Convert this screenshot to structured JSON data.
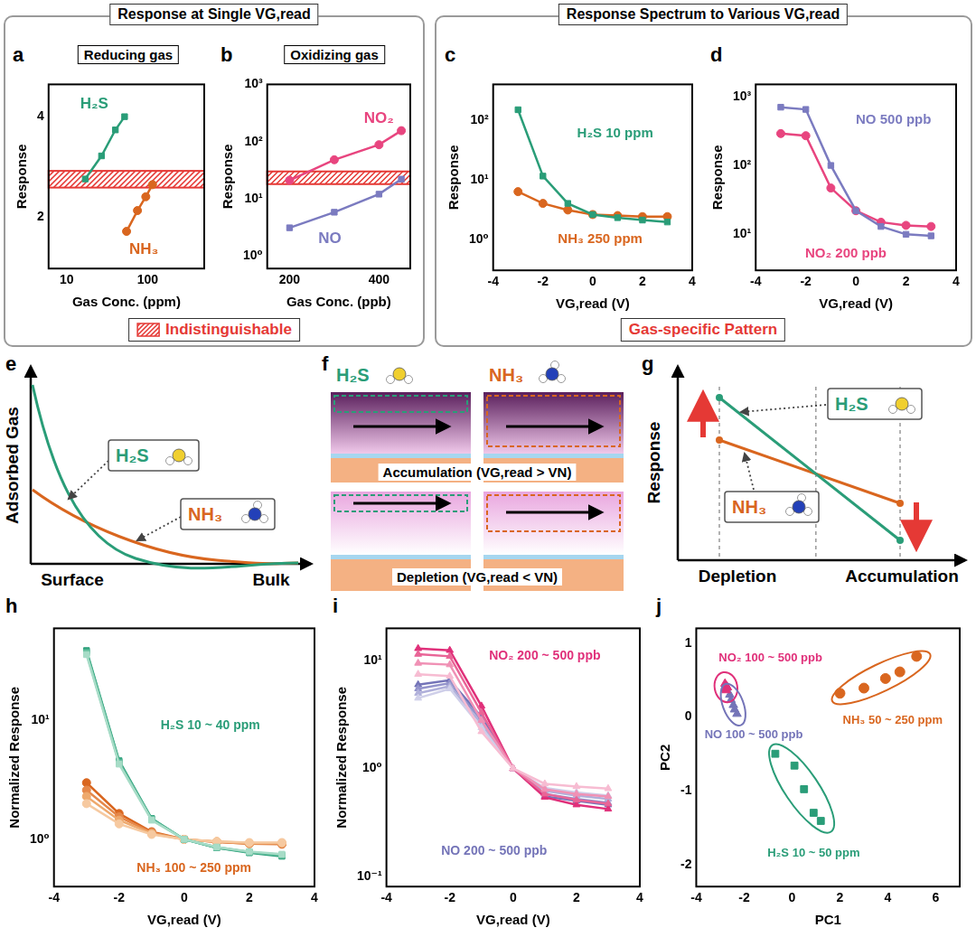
{
  "groups": [
    {
      "title": "Response at Single VG,read",
      "caption": "Indistinguishable",
      "color": "#e53935",
      "marker": "hatch"
    },
    {
      "title": "Response Spectrum to Various VG,read",
      "caption": "Gas-specific Pattern",
      "color": "#e53935"
    }
  ],
  "chart_data": [
    {
      "panel": "a",
      "subtitle": "Reducing gas",
      "type": "line",
      "x_label": "Gas Conc. (ppm)",
      "y_label": "Response",
      "log": true,
      "grid": false,
      "xlim": [
        6,
        500
      ],
      "xticks": [
        10,
        100
      ],
      "ylim": [
        1.4,
        5
      ],
      "yticks": [
        2,
        4
      ],
      "band": {
        "values": [
          2.45,
          2.75
        ],
        "color": "#e53935"
      },
      "series": [
        {
          "color": "#2a9d78",
          "marker": "square",
          "x": [
            17,
            27,
            40,
            52
          ],
          "values": [
            2.6,
            3.05,
            3.65,
            4.0
          ]
        },
        {
          "color": "#d9661f",
          "marker": "circle",
          "x": [
            55,
            75,
            95,
            115
          ],
          "values": [
            1.81,
            2.09,
            2.3,
            2.5
          ]
        }
      ],
      "annotations": [
        {
          "text": "H₂S",
          "x": 22,
          "y": 4.35,
          "color": "#2a9d78"
        },
        {
          "text": "NH₃",
          "x": 90,
          "y": 1.6,
          "color": "#d9661f"
        }
      ]
    },
    {
      "panel": "b",
      "subtitle": "Oxidizing gas",
      "type": "line",
      "x_label": "Gas Conc. (ppb)",
      "y_label": "Response",
      "log": "y",
      "grid": false,
      "xlim": [
        150,
        470
      ],
      "xticks": [
        200,
        400
      ],
      "ylim": [
        0.6,
        1000
      ],
      "yticks": [
        {
          "value": 1,
          "label": "10⁰"
        },
        {
          "value": 10,
          "label": "10¹"
        },
        {
          "value": 100,
          "label": "10²"
        },
        {
          "value": 1000,
          "label": "10³"
        }
      ],
      "band": {
        "values": [
          18,
          30
        ],
        "color": "#e53935"
      },
      "series": [
        {
          "color": "#e8457f",
          "marker": "circle",
          "x": [
            200,
            300,
            400,
            450
          ],
          "values": [
            21,
            48,
            88,
            155
          ]
        },
        {
          "color": "#7b7bc0",
          "marker": "square",
          "x": [
            200,
            300,
            400,
            450
          ],
          "values": [
            3.1,
            5.8,
            12,
            22
          ]
        }
      ],
      "annotations": [
        {
          "text": "NO₂",
          "x": 400,
          "y": 250,
          "color": "#e8457f"
        },
        {
          "text": "NO",
          "x": 290,
          "y": 2.0,
          "color": "#7b7bc0"
        }
      ]
    },
    {
      "panel": "c",
      "type": "line",
      "x_label": "VG,read (V)",
      "y_label": "Response",
      "log": "y",
      "grid": false,
      "xlim": [
        -4,
        4
      ],
      "xticks": [
        -4,
        -2,
        0,
        2,
        4
      ],
      "ylim": [
        0.3,
        400
      ],
      "yticks": [
        {
          "value": 1,
          "label": "10⁰"
        },
        {
          "value": 10,
          "label": "10¹"
        },
        {
          "value": 100,
          "label": "10²"
        }
      ],
      "series": [
        {
          "color": "#2a9d78",
          "marker": "square",
          "x": [
            -3,
            -2,
            -1,
            0,
            1,
            2,
            3
          ],
          "values": [
            150,
            11.5,
            4,
            2.6,
            2.3,
            2.1,
            1.95
          ]
        },
        {
          "color": "#d9661f",
          "marker": "circle",
          "x": [
            -3,
            -2,
            -1,
            0,
            1,
            2,
            3
          ],
          "values": [
            6.3,
            4,
            3.1,
            2.6,
            2.5,
            2.4,
            2.4
          ]
        }
      ],
      "annotations": [
        {
          "text": "H₂S 10 ppm",
          "x": 0.9,
          "y": 60,
          "color": "#2a9d78"
        },
        {
          "text": "NH₃ 250 ppm",
          "x": 0.3,
          "y": 1.0,
          "color": "#d9661f"
        }
      ]
    },
    {
      "panel": "d",
      "type": "line",
      "x_label": "VG,read (V)",
      "y_label": "Response",
      "log": "y",
      "grid": false,
      "xlim": [
        -4,
        4
      ],
      "xticks": [
        -4,
        -2,
        0,
        2,
        4
      ],
      "ylim": [
        3,
        1500
      ],
      "yticks": [
        {
          "value": 10,
          "label": "10¹"
        },
        {
          "value": 100,
          "label": "10²"
        },
        {
          "value": 1000,
          "label": "10³"
        }
      ],
      "series": [
        {
          "color": "#7b7bc0",
          "marker": "square",
          "x": [
            -3,
            -2,
            -1,
            0,
            1,
            2,
            3
          ],
          "values": [
            700,
            650,
            100,
            22,
            13,
            10,
            9.5
          ]
        },
        {
          "color": "#e8457f",
          "marker": "circle",
          "x": [
            -3,
            -2,
            -1,
            0,
            1,
            2,
            3
          ],
          "values": [
            290,
            270,
            47,
            22,
            15,
            13.5,
            13
          ]
        }
      ],
      "annotations": [
        {
          "text": "NO 500 ppb",
          "x": 1.5,
          "y": 450,
          "color": "#7b7bc0"
        },
        {
          "text": "NO₂ 200 ppb",
          "x": -0.4,
          "y": 5.2,
          "color": "#e8457f"
        }
      ]
    },
    {
      "panel": "h",
      "type": "line",
      "x_label": "VG,read (V)",
      "y_label": "Normalized Response",
      "log": "y",
      "grid": false,
      "xlim": [
        -4,
        4
      ],
      "xticks": [
        -4,
        -2,
        0,
        2,
        4
      ],
      "ylim": [
        0.4,
        60
      ],
      "yticks": [
        {
          "value": 1,
          "label": "10⁰"
        },
        {
          "value": 10,
          "label": "10¹"
        }
      ],
      "series": [
        {
          "color": "#a7dcc7",
          "marker": "square",
          "x": [
            -3,
            -2,
            -1,
            0,
            1,
            2,
            3
          ],
          "values": [
            36,
            4.3,
            1.45,
            1,
            0.86,
            0.79,
            0.75
          ]
        },
        {
          "color": "#6ec4a3",
          "marker": "square",
          "x": [
            -3,
            -2,
            -1,
            0,
            1,
            2,
            3
          ],
          "values": [
            37,
            4.4,
            1.47,
            1,
            0.86,
            0.78,
            0.74
          ]
        },
        {
          "color": "#45b08d",
          "marker": "square",
          "x": [
            -3,
            -2,
            -1,
            0,
            1,
            2,
            3
          ],
          "values": [
            38,
            4.5,
            1.48,
            1,
            0.85,
            0.78,
            0.73
          ]
        },
        {
          "color": "#2a9d78",
          "marker": "square",
          "x": [
            -3,
            -2,
            -1,
            0,
            1,
            2,
            3
          ],
          "values": [
            39,
            4.6,
            1.5,
            1,
            0.85,
            0.77,
            0.72
          ]
        },
        {
          "color": "#f6c9a0",
          "marker": "circle",
          "x": [
            -3,
            -2,
            -1,
            0,
            1,
            2,
            3
          ],
          "values": [
            2.0,
            1.35,
            1.1,
            1,
            0.96,
            0.94,
            0.94
          ]
        },
        {
          "color": "#eea96d",
          "marker": "circle",
          "x": [
            -3,
            -2,
            -1,
            0,
            1,
            2,
            3
          ],
          "values": [
            2.3,
            1.45,
            1.12,
            1,
            0.96,
            0.93,
            0.93
          ]
        },
        {
          "color": "#e5884a",
          "marker": "circle",
          "x": [
            -3,
            -2,
            -1,
            0,
            1,
            2,
            3
          ],
          "values": [
            2.6,
            1.55,
            1.14,
            1,
            0.95,
            0.92,
            0.92
          ]
        },
        {
          "color": "#d9661f",
          "marker": "circle",
          "x": [
            -3,
            -2,
            -1,
            0,
            1,
            2,
            3
          ],
          "values": [
            3.0,
            1.65,
            1.16,
            1,
            0.95,
            0.92,
            0.91
          ]
        }
      ],
      "annotations": [
        {
          "text": "H₂S 10 ~ 40 ppm",
          "x": 0.8,
          "y": 9,
          "color": "#2a9d78"
        },
        {
          "text": "NH₃ 100 ~ 250 ppm",
          "x": 0.3,
          "y": 0.57,
          "color": "#d9661f"
        }
      ]
    },
    {
      "panel": "i",
      "type": "line",
      "x_label": "VG,read (V)",
      "y_label": "Normalized Response",
      "log": "y",
      "grid": false,
      "xlim": [
        -4,
        4
      ],
      "xticks": [
        -4,
        -2,
        0,
        2,
        4
      ],
      "ylim": [
        0.08,
        20
      ],
      "yticks": [
        {
          "value": 0.1,
          "label": "10⁻¹"
        },
        {
          "value": 1,
          "label": "10⁰"
        },
        {
          "value": 10,
          "label": "10¹"
        }
      ],
      "series": [
        {
          "color": "#f7bcd2",
          "marker": "triangle",
          "x": [
            -3,
            -2,
            -1,
            0,
            1,
            2,
            3
          ],
          "values": [
            7.5,
            7.2,
            2.2,
            1,
            0.72,
            0.68,
            0.65
          ]
        },
        {
          "color": "#f091b5",
          "marker": "triangle",
          "x": [
            -3,
            -2,
            -1,
            0,
            1,
            2,
            3
          ],
          "values": [
            9.5,
            9.2,
            2.8,
            1,
            0.64,
            0.58,
            0.55
          ]
        },
        {
          "color": "#e96597",
          "marker": "triangle",
          "x": [
            -3,
            -2,
            -1,
            0,
            1,
            2,
            3
          ],
          "values": [
            11.5,
            11,
            3.3,
            1,
            0.58,
            0.51,
            0.47
          ]
        },
        {
          "color": "#e0307a",
          "marker": "triangle",
          "x": [
            -3,
            -2,
            -1,
            0,
            1,
            2,
            3
          ],
          "values": [
            13,
            12.5,
            3.8,
            1,
            0.54,
            0.46,
            0.42
          ]
        },
        {
          "color": "#cfcfe9",
          "marker": "triangle",
          "x": [
            -3,
            -2,
            -1,
            0,
            1,
            2,
            3
          ],
          "values": [
            4.5,
            5.5,
            2.4,
            1,
            0.66,
            0.6,
            0.56
          ]
        },
        {
          "color": "#b0b0da",
          "marker": "triangle",
          "x": [
            -3,
            -2,
            -1,
            0,
            1,
            2,
            3
          ],
          "values": [
            5,
            5.8,
            2.6,
            1,
            0.62,
            0.56,
            0.52
          ]
        },
        {
          "color": "#9393cb",
          "marker": "triangle",
          "x": [
            -3,
            -2,
            -1,
            0,
            1,
            2,
            3
          ],
          "values": [
            5.5,
            6.2,
            2.8,
            1,
            0.58,
            0.52,
            0.48
          ]
        },
        {
          "color": "#7474b8",
          "marker": "triangle",
          "x": [
            -3,
            -2,
            -1,
            0,
            1,
            2,
            3
          ],
          "values": [
            6,
            6.6,
            3.0,
            1,
            0.55,
            0.5,
            0.46
          ]
        }
      ],
      "annotations": [
        {
          "text": "NO₂ 200 ~ 500 ppb",
          "x": 1.0,
          "y": 11,
          "color": "#e0307a"
        },
        {
          "text": "NO 200 ~ 500 ppb",
          "x": -0.6,
          "y": 0.17,
          "color": "#7474b8"
        }
      ]
    },
    {
      "panel": "j",
      "type": "scatter",
      "x_label": "PC1",
      "y_label": "PC2",
      "grid": false,
      "xlim": [
        -4,
        7
      ],
      "xticks": [
        -4,
        -2,
        0,
        2,
        4,
        6
      ],
      "ylim": [
        -2.3,
        1.2
      ],
      "yticks": [
        -2,
        -1,
        0,
        1
      ],
      "series": [
        {
          "color": "#e0307a",
          "marker": "triangle",
          "x": [
            -2.8,
            -2.75,
            -2.7,
            -2.8,
            -2.75
          ],
          "values": [
            0.45,
            0.42,
            0.4,
            0.38,
            0.36
          ]
        },
        {
          "color": "#7474b8",
          "marker": "triangle",
          "x": [
            -2.6,
            -2.55,
            -2.45,
            -2.4,
            -2.3
          ],
          "values": [
            0.3,
            0.23,
            0.16,
            0.1,
            0.04
          ]
        },
        {
          "color": "#d9661f",
          "marker": "circle",
          "x": [
            2,
            3,
            3.9,
            4.5,
            5.2
          ],
          "values": [
            0.32,
            0.39,
            0.52,
            0.61,
            0.82
          ]
        },
        {
          "color": "#2a9d78",
          "marker": "square",
          "x": [
            -0.7,
            0.1,
            0.5,
            0.9,
            1.2
          ],
          "values": [
            -0.5,
            -0.66,
            -0.98,
            -1.3,
            -1.41
          ]
        }
      ],
      "annotations": [
        {
          "text": "NO₂ 100 ~ 500 ppb",
          "x": -0.9,
          "y": 0.8,
          "color": "#e0307a"
        },
        {
          "text": "NH₃ 50 ~ 250 ppm",
          "x": 4.2,
          "y": -0.05,
          "color": "#d9661f"
        },
        {
          "text": "NO 100 ~ 500 ppb",
          "x": -1.6,
          "y": -0.25,
          "color": "#7474b8"
        },
        {
          "text": "H₂S 10 ~ 50 ppm",
          "x": 0.9,
          "y": -1.85,
          "color": "#2a9d78"
        }
      ]
    }
  ],
  "diagrams": [
    {
      "panel": "e",
      "y_label": "Adsorbed Gas",
      "x_labels": [
        "Surface",
        "Bulk"
      ],
      "gases": [
        {
          "name": "H₂S",
          "color": "#2a9d78"
        },
        {
          "name": "NH₃",
          "color": "#d9661f"
        }
      ]
    },
    {
      "panel": "f",
      "rows": [
        "Accumulation (VG,read > VN)",
        "Depletion (VG,read < VN)"
      ],
      "gases": [
        {
          "name": "H₂S",
          "color": "#2a9d78"
        },
        {
          "name": "NH₃",
          "color": "#d9661f"
        }
      ]
    },
    {
      "panel": "g",
      "y_label": "Response",
      "x_labels": [
        "Depletion",
        "Accumulation"
      ],
      "gases": [
        {
          "name": "H₂S",
          "color": "#2a9d78"
        },
        {
          "name": "NH₃",
          "color": "#d9661f"
        }
      ]
    }
  ]
}
